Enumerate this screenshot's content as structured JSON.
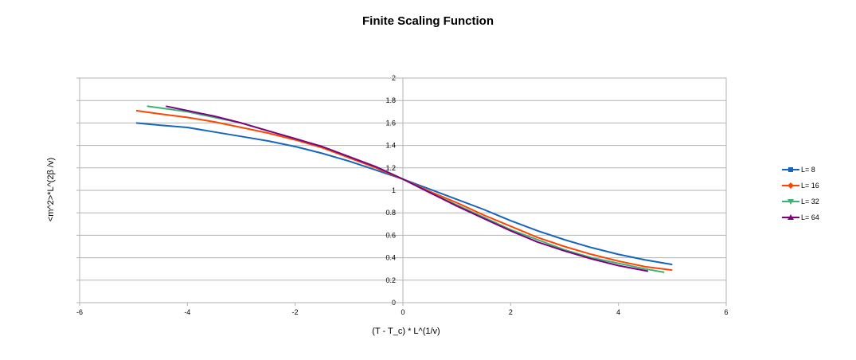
{
  "chart_data": {
    "type": "line",
    "title": "Finite Scaling Function",
    "xlabel": "(T - T_c) * L^(1/v)",
    "ylabel": "<m^2>*L^(2β /v)",
    "xlim": [
      -6,
      6
    ],
    "ylim": [
      0,
      2
    ],
    "x_ticks": [
      "-6",
      "-4",
      "-2",
      "0",
      "2",
      "4",
      "6"
    ],
    "y_ticks": [
      "0",
      "0.2",
      "0.4",
      "0.6",
      "0.8",
      "1",
      "1.2",
      "1.4",
      "1.6",
      "1.8",
      "2"
    ],
    "grid": "horizontal",
    "legend_position": "right",
    "series": [
      {
        "name": "L= 8",
        "color": "#1565c0",
        "marker": "square",
        "points": [
          [
            -4.95,
            1.6
          ],
          [
            -4.5,
            1.58
          ],
          [
            -4.0,
            1.56
          ],
          [
            -3.5,
            1.52
          ],
          [
            -3.0,
            1.48
          ],
          [
            -2.5,
            1.44
          ],
          [
            -2.0,
            1.39
          ],
          [
            -1.5,
            1.33
          ],
          [
            -1.0,
            1.26
          ],
          [
            -0.5,
            1.18
          ],
          [
            0.0,
            1.1
          ],
          [
            0.5,
            1.01
          ],
          [
            1.0,
            0.92
          ],
          [
            1.5,
            0.83
          ],
          [
            2.0,
            0.73
          ],
          [
            2.5,
            0.64
          ],
          [
            3.0,
            0.56
          ],
          [
            3.5,
            0.49
          ],
          [
            4.0,
            0.43
          ],
          [
            4.5,
            0.38
          ],
          [
            5.0,
            0.34
          ]
        ]
      },
      {
        "name": "L= 16",
        "color": "#ff4500",
        "marker": "diamond",
        "points": [
          [
            -4.95,
            1.71
          ],
          [
            -4.5,
            1.68
          ],
          [
            -4.0,
            1.65
          ],
          [
            -3.5,
            1.61
          ],
          [
            -3.0,
            1.56
          ],
          [
            -2.5,
            1.51
          ],
          [
            -2.0,
            1.45
          ],
          [
            -1.5,
            1.38
          ],
          [
            -1.0,
            1.29
          ],
          [
            -0.5,
            1.2
          ],
          [
            0.0,
            1.1
          ],
          [
            0.5,
            0.99
          ],
          [
            1.0,
            0.89
          ],
          [
            1.5,
            0.78
          ],
          [
            2.0,
            0.68
          ],
          [
            2.5,
            0.58
          ],
          [
            3.0,
            0.5
          ],
          [
            3.5,
            0.43
          ],
          [
            4.0,
            0.37
          ],
          [
            4.5,
            0.32
          ],
          [
            5.0,
            0.29
          ]
        ]
      },
      {
        "name": "L= 32",
        "color": "#3cb371",
        "marker": "triangle-down",
        "points": [
          [
            -4.75,
            1.75
          ],
          [
            -4.0,
            1.7
          ],
          [
            -3.5,
            1.65
          ],
          [
            -3.0,
            1.6
          ],
          [
            -2.5,
            1.53
          ],
          [
            -2.0,
            1.46
          ],
          [
            -1.5,
            1.39
          ],
          [
            -1.0,
            1.3
          ],
          [
            -0.5,
            1.21
          ],
          [
            0.0,
            1.1
          ],
          [
            0.5,
            0.98
          ],
          [
            1.0,
            0.87
          ],
          [
            1.5,
            0.76
          ],
          [
            2.0,
            0.65
          ],
          [
            2.5,
            0.56
          ],
          [
            3.0,
            0.47
          ],
          [
            3.5,
            0.4
          ],
          [
            4.0,
            0.35
          ],
          [
            4.5,
            0.3
          ],
          [
            4.85,
            0.27
          ]
        ]
      },
      {
        "name": "L= 64",
        "color": "#800080",
        "marker": "triangle-up",
        "points": [
          [
            -4.4,
            1.75
          ],
          [
            -4.0,
            1.71
          ],
          [
            -3.5,
            1.66
          ],
          [
            -3.0,
            1.6
          ],
          [
            -2.5,
            1.53
          ],
          [
            -2.0,
            1.46
          ],
          [
            -1.5,
            1.39
          ],
          [
            -1.0,
            1.3
          ],
          [
            -0.5,
            1.21
          ],
          [
            0.0,
            1.1
          ],
          [
            0.5,
            0.98
          ],
          [
            1.0,
            0.86
          ],
          [
            1.5,
            0.75
          ],
          [
            2.0,
            0.64
          ],
          [
            2.5,
            0.54
          ],
          [
            3.0,
            0.46
          ],
          [
            3.5,
            0.39
          ],
          [
            4.0,
            0.33
          ],
          [
            4.55,
            0.28
          ]
        ]
      }
    ]
  }
}
